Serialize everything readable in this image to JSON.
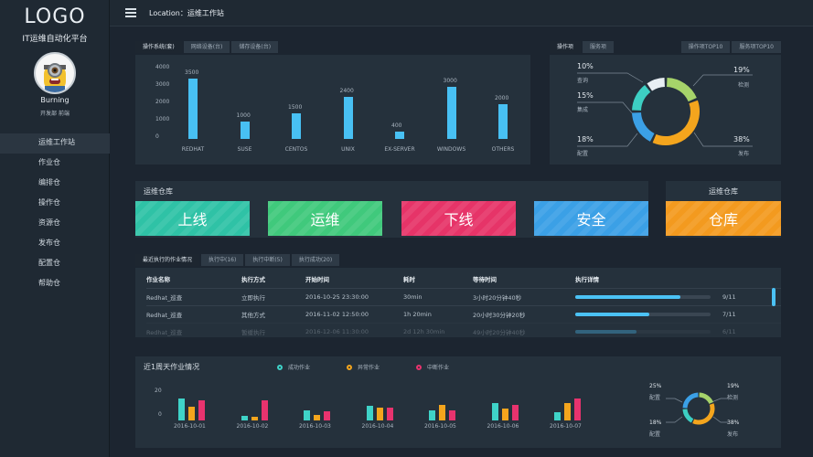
{
  "sidebar": {
    "logo": "LOGO",
    "subtitle": "IT运维自动化平台",
    "username": "Burning",
    "userinfo": "开发部 前端",
    "items": [
      "运维工作站",
      "作业仓",
      "编排仓",
      "操作仓",
      "资源仓",
      "发布仓",
      "配置仓",
      "帮助仓"
    ]
  },
  "topbar": {
    "location": "Location：运维工作站"
  },
  "os_panel": {
    "tabs": [
      "操作系统(套)",
      "网络设备(台)",
      "储存设备(台)"
    ],
    "yticks": [
      "4000",
      "3000",
      "2000",
      "1000",
      "0"
    ]
  },
  "donut_panel": {
    "tabs": [
      "操作项",
      "服务项"
    ],
    "right_tabs": [
      "操作项TOP10",
      "服务项TOP10"
    ],
    "labels": [
      {
        "pct": "10%",
        "name": "查询"
      },
      {
        "pct": "15%",
        "name": "集成"
      },
      {
        "pct": "18%",
        "name": "配置"
      },
      {
        "pct": "19%",
        "name": "检测"
      },
      {
        "pct": "38%",
        "name": "发布"
      }
    ]
  },
  "warehouse": {
    "title_left": "运维仓库",
    "title_right": "运维仓库",
    "items": [
      {
        "label": "上线",
        "color": "#2fc2a6"
      },
      {
        "label": "运维",
        "color": "#40c97c"
      },
      {
        "label": "下线",
        "color": "#e63468"
      },
      {
        "label": "安全",
        "color": "#3ba0e6"
      },
      {
        "label": "仓库",
        "color": "#f39a1f"
      }
    ]
  },
  "jobs": {
    "tabs": [
      "最近执行的作业情况",
      "执行中(16)",
      "执行中断(5)",
      "执行成功(20)"
    ],
    "headers": [
      "作业名称",
      "执行方式",
      "开始时间",
      "耗时",
      "等待时间",
      "执行详情"
    ],
    "rows": [
      {
        "name": "Redhat_巡查",
        "mode": "立即执行",
        "start": "2016-10-25 23:30:00",
        "duration": "30min",
        "wait": "3小时20分钟40秒",
        "progress": 0.78,
        "count": "9/11"
      },
      {
        "name": "Redhat_巡查",
        "mode": "其他方式",
        "start": "2016-11-02 12:50:00",
        "duration": "1h 20min",
        "wait": "20小时30分钟20秒",
        "progress": 0.55,
        "count": "7/11"
      },
      {
        "name": "Redhat_巡查",
        "mode": "暂缓执行",
        "start": "2016-12-06 11:30:00",
        "duration": "2d 12h 30min",
        "wait": "49小时20分钟40秒",
        "progress": 0.45,
        "count": "6/11"
      }
    ]
  },
  "weekly": {
    "title": "近1周天作业情况",
    "legend": [
      {
        "label": "成功作业",
        "color": "#3fd3c8"
      },
      {
        "label": "异常作业",
        "color": "#f4a51d"
      },
      {
        "label": "中断作业",
        "color": "#e8336e"
      }
    ],
    "donut_labels": [
      {
        "pct": "25%",
        "name": "配置"
      },
      {
        "pct": "18%",
        "name": "配置"
      },
      {
        "pct": "19%",
        "name": "检测"
      },
      {
        "pct": "38%",
        "name": "发布"
      }
    ]
  },
  "chart_data": [
    {
      "type": "bar",
      "categories": [
        "REDHAT",
        "SUSE",
        "CENTOS",
        "UNIX",
        "EX-SERVER",
        "WINDOWS",
        "OTHERS"
      ],
      "values": [
        3500,
        1000,
        1500,
        2400,
        400,
        3000,
        2000
      ],
      "ylim": [
        0,
        4000
      ],
      "color": "#48c0f3"
    },
    {
      "type": "pie",
      "categories": [
        "查询",
        "集成",
        "配置",
        "检测",
        "发布"
      ],
      "values": [
        10,
        15,
        18,
        19,
        38
      ],
      "colors": [
        "#e8eef3",
        "#3dcfc3",
        "#3ba0e6",
        "#a6d36a",
        "#f4a51d"
      ]
    },
    {
      "type": "bar",
      "categories": [
        "2016-10-01",
        "2016-10-02",
        "2016-10-03",
        "2016-10-04",
        "2016-10-05",
        "2016-10-06",
        "2016-10-07"
      ],
      "yticks": [
        "20",
        "0"
      ],
      "series": [
        {
          "name": "成功作业",
          "values": [
            22,
            5,
            10,
            15,
            10,
            18,
            8
          ]
        },
        {
          "name": "异常作业",
          "values": [
            14,
            4,
            6,
            13,
            16,
            12,
            18
          ]
        },
        {
          "name": "中断作业",
          "values": [
            20,
            20,
            9,
            13,
            10,
            16,
            22
          ]
        }
      ],
      "ylim": [
        0,
        24
      ]
    },
    {
      "type": "pie",
      "categories": [
        "配置",
        "检测",
        "配置",
        "发布"
      ],
      "values": [
        25,
        19,
        18,
        38
      ],
      "colors": [
        "#3ba0e6",
        "#a6d36a",
        "#3dcfc3",
        "#f4a51d"
      ]
    }
  ]
}
